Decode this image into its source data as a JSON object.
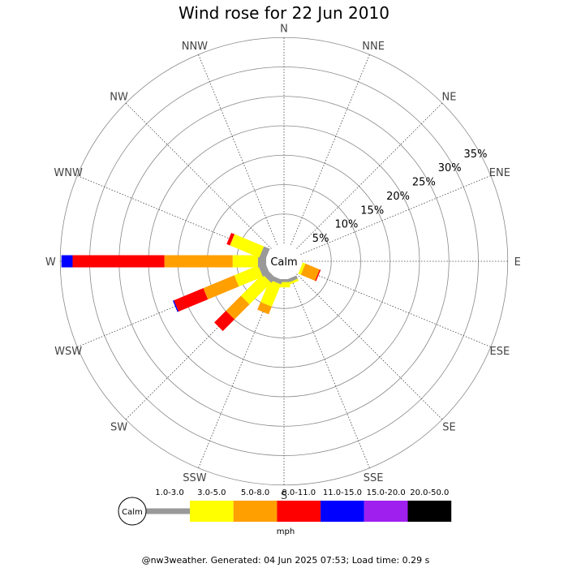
{
  "chart_data": {
    "type": "wind-rose",
    "title": "Wind rose for 22 Jun 2010",
    "directions": [
      "N",
      "NNE",
      "NE",
      "ENE",
      "E",
      "ESE",
      "SE",
      "SSE",
      "S",
      "SSW",
      "SW",
      "WSW",
      "W",
      "WNW",
      "NW",
      "NNW"
    ],
    "rings_percent": [
      5,
      10,
      15,
      20,
      25,
      30,
      35
    ],
    "ring_labels": [
      "5%",
      "10%",
      "15%",
      "20%",
      "25%",
      "30%",
      "35%"
    ],
    "calm_label": "Calm",
    "speed_bins": [
      {
        "label": "1.0-3.0",
        "color": "#999999"
      },
      {
        "label": "3.0-5.0",
        "color": "#ffff00"
      },
      {
        "label": "5.0-8.0",
        "color": "#ff9f00"
      },
      {
        "label": "8.0-11.0",
        "color": "#ff0000"
      },
      {
        "label": "11.0-15.0",
        "color": "#0000ff"
      },
      {
        "label": "15.0-20.0",
        "color": "#9f1fef"
      },
      {
        "label": "20.0-50.0",
        "color": "#000000"
      }
    ],
    "unit_label": "mph",
    "series": [
      {
        "direction": "N",
        "values": [
          0,
          0,
          0,
          0,
          0,
          0,
          0
        ]
      },
      {
        "direction": "NNE",
        "values": [
          0,
          0,
          0,
          0,
          0,
          0,
          0
        ]
      },
      {
        "direction": "NE",
        "values": [
          0,
          0,
          0,
          0,
          0,
          0,
          0
        ]
      },
      {
        "direction": "ENE",
        "values": [
          0,
          0,
          0,
          0,
          0,
          0,
          0
        ]
      },
      {
        "direction": "E",
        "values": [
          0,
          0,
          0,
          0,
          0,
          0,
          0
        ]
      },
      {
        "direction": "ESE",
        "values": [
          0,
          0.5,
          2.6,
          0.2,
          0,
          0,
          0
        ]
      },
      {
        "direction": "SE",
        "values": [
          0,
          0,
          0,
          0,
          0,
          0,
          0
        ]
      },
      {
        "direction": "SSE",
        "values": [
          0.6,
          0.4,
          0,
          0,
          0,
          0,
          0
        ]
      },
      {
        "direction": "S",
        "values": [
          0.5,
          0.9,
          0,
          0,
          0,
          0,
          0
        ]
      },
      {
        "direction": "SSW",
        "values": [
          0.8,
          4.1,
          1.4,
          0,
          0,
          0,
          0
        ]
      },
      {
        "direction": "SW",
        "values": [
          1.1,
          5.2,
          3.6,
          2.8,
          0,
          0,
          0
        ]
      },
      {
        "direction": "WSW",
        "values": [
          1.3,
          4.4,
          5.7,
          5.4,
          0.2,
          0,
          0
        ]
      },
      {
        "direction": "W",
        "values": [
          1.4,
          4.3,
          11.6,
          15.6,
          1.9,
          0,
          0
        ]
      },
      {
        "direction": "WNW",
        "values": [
          1.1,
          5.4,
          0,
          0.6,
          0,
          0,
          0
        ]
      },
      {
        "direction": "NW",
        "values": [
          0,
          0,
          0,
          0,
          0,
          0,
          0
        ]
      },
      {
        "direction": "NNW",
        "values": [
          0,
          0,
          0,
          0,
          0,
          0,
          0
        ]
      }
    ],
    "footer": "@nw3weather. Generated: 04 Jun 2025 07:53; Load time: 0.29 s"
  }
}
